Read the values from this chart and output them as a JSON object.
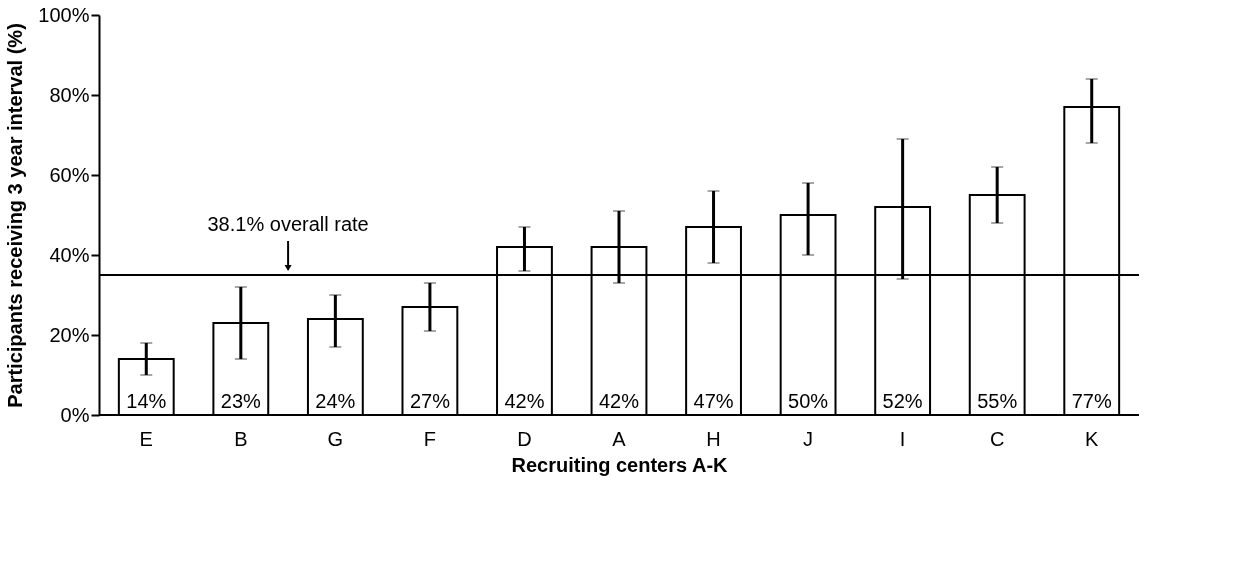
{
  "chart_data": {
    "type": "bar",
    "xlabel": "Recruiting centers A-K",
    "ylabel": "Participants receiving 3 year interval (%)",
    "categories": [
      "E",
      "B",
      "G",
      "F",
      "D",
      "A",
      "H",
      "J",
      "I",
      "C",
      "K"
    ],
    "values": [
      14,
      23,
      24,
      27,
      42,
      42,
      47,
      50,
      52,
      55,
      77
    ],
    "errors": [
      [
        10,
        18
      ],
      [
        14,
        32
      ],
      [
        17,
        30
      ],
      [
        21,
        33
      ],
      [
        36,
        47
      ],
      [
        33,
        51
      ],
      [
        38,
        56
      ],
      [
        40,
        58
      ],
      [
        34,
        69
      ],
      [
        48,
        62
      ],
      [
        68,
        84
      ]
    ],
    "value_labels": [
      "14%",
      "23%",
      "24%",
      "27%",
      "42%",
      "42%",
      "47%",
      "50%",
      "52%",
      "55%",
      "77%"
    ],
    "color": "#ffffff",
    "ylim": [
      0,
      100
    ],
    "yticks": [
      {
        "value": 0,
        "label": "0%"
      },
      {
        "value": 20,
        "label": "20%"
      },
      {
        "value": 40,
        "label": "40%"
      },
      {
        "value": 60,
        "label": "60%"
      },
      {
        "value": 80,
        "label": "80%"
      },
      {
        "value": 100,
        "label": "100%"
      }
    ],
    "ref_lines": [
      {
        "axis": "y",
        "value": 35,
        "label": "38.1% overall rate",
        "color": "#000000"
      }
    ],
    "grid": false
  }
}
